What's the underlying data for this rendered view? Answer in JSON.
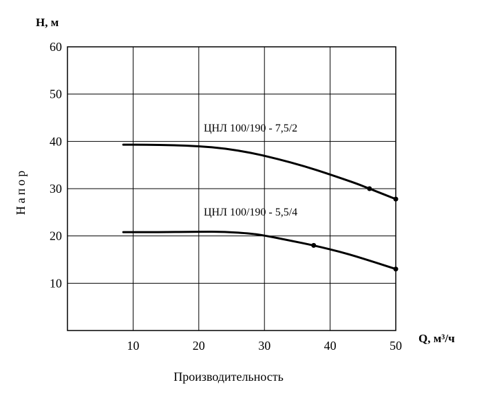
{
  "chart_data": {
    "type": "line",
    "title": "",
    "xlabel": "Производительность",
    "ylabel": "Напор",
    "x_unit": "Q, м³/ч",
    "y_unit": "Н, м",
    "xlim": [
      0,
      50
    ],
    "ylim": [
      0,
      60
    ],
    "x_ticks": [
      "10",
      "20",
      "30",
      "40",
      "50"
    ],
    "y_ticks": [
      "60",
      "50",
      "40",
      "30",
      "20",
      "10"
    ],
    "grid": true,
    "series": [
      {
        "name": "ЦНЛ 100/190 - 7,5/2",
        "x": [
          8.5,
          12,
          16,
          20,
          24,
          28,
          32,
          36,
          40,
          44,
          46,
          50
        ],
        "y": [
          39.3,
          39.3,
          39.2,
          39.0,
          38.5,
          37.6,
          36.3,
          34.8,
          33.0,
          31.1,
          30.0,
          27.8
        ],
        "markers": [
          46,
          50
        ]
      },
      {
        "name": "ЦНЛ 100/190 - 5,5/4",
        "x": [
          8.5,
          14,
          20,
          24,
          28,
          30,
          34,
          37.5,
          42,
          46,
          50
        ],
        "y": [
          20.8,
          20.8,
          20.9,
          20.9,
          20.5,
          20.1,
          19.0,
          18.0,
          16.5,
          14.8,
          13.0
        ],
        "markers": [
          37.5,
          50
        ]
      }
    ]
  }
}
